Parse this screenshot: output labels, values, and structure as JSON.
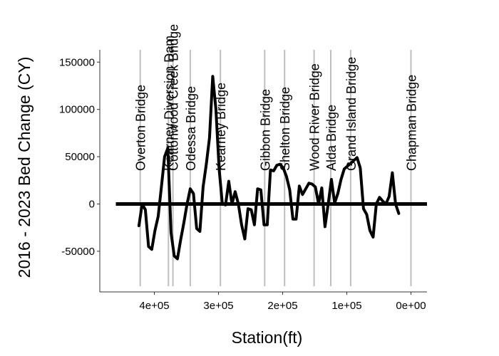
{
  "chart_data": {
    "type": "line",
    "xlabel": "Station(ft)",
    "ylabel": "2016 - 2023 Bed Change (CY)",
    "x_reversed": true,
    "xlim": [
      -25000,
      485000
    ],
    "ylim": [
      -93000,
      163000
    ],
    "x_ticks": [
      {
        "value": 400000,
        "label": "4e+05"
      },
      {
        "value": 300000,
        "label": "3e+05"
      },
      {
        "value": 200000,
        "label": "2e+05"
      },
      {
        "value": 100000,
        "label": "1e+05"
      },
      {
        "value": 0,
        "label": "0e+00"
      }
    ],
    "y_ticks": [
      {
        "value": 150000,
        "label": "150000"
      },
      {
        "value": 100000,
        "label": "100000"
      },
      {
        "value": 50000,
        "label": "50000"
      },
      {
        "value": 0,
        "label": "0"
      },
      {
        "value": -50000,
        "label": "-50000"
      }
    ],
    "grid": false,
    "zero_line": true,
    "colors": {
      "line": "#000000",
      "bridge_line": "#bebebe",
      "axis": "#333333"
    },
    "bridges": [
      {
        "label": "Overton Bridge",
        "station": 422000
      },
      {
        "label": "Kearney Diversion Dam",
        "station": 378000
      },
      {
        "label": "Cottonwood Creek Bridge",
        "station": 371000
      },
      {
        "label": "Odessa Bridge",
        "station": 344000
      },
      {
        "label": "Kearney Bridge",
        "station": 297000
      },
      {
        "label": "Gibbon Bridge",
        "station": 228000
      },
      {
        "label": "Shelton Bridge",
        "station": 197000
      },
      {
        "label": "Wood River Bridge",
        "station": 151000
      },
      {
        "label": "Alda Bridge",
        "station": 125000
      },
      {
        "label": "Grand Island Bridge",
        "station": 94000
      },
      {
        "label": "Chapman Bridge",
        "station": 0
      }
    ],
    "series": [
      {
        "points": [
          [
            424000,
            -23000
          ],
          [
            419000,
            0
          ],
          [
            414000,
            -6000
          ],
          [
            409000,
            -45000
          ],
          [
            404000,
            -48000
          ],
          [
            399000,
            -28000
          ],
          [
            394000,
            -13000
          ],
          [
            389000,
            18000
          ],
          [
            384000,
            50000
          ],
          [
            379000,
            59000
          ],
          [
            374000,
            -30000
          ],
          [
            369000,
            -55000
          ],
          [
            364000,
            -58000
          ],
          [
            359000,
            -38000
          ],
          [
            354000,
            -20000
          ],
          [
            349000,
            0
          ],
          [
            344000,
            16000
          ],
          [
            339000,
            11000
          ],
          [
            334000,
            -26000
          ],
          [
            329000,
            -29000
          ],
          [
            324000,
            18000
          ],
          [
            319000,
            42000
          ],
          [
            314000,
            70000
          ],
          [
            309000,
            135000
          ],
          [
            304000,
            100000
          ],
          [
            299000,
            37000
          ],
          [
            294000,
            0
          ],
          [
            289000,
            -1000
          ],
          [
            284000,
            24000
          ],
          [
            279000,
            0
          ],
          [
            274000,
            13000
          ],
          [
            269000,
            0
          ],
          [
            264000,
            -22000
          ],
          [
            259000,
            -37000
          ],
          [
            254000,
            -5000
          ],
          [
            249000,
            -6000
          ],
          [
            244000,
            -22000
          ],
          [
            239000,
            16000
          ],
          [
            234000,
            15000
          ],
          [
            229000,
            -22000
          ],
          [
            224000,
            -22000
          ],
          [
            219000,
            36000
          ],
          [
            214000,
            35000
          ],
          [
            209000,
            41000
          ],
          [
            204000,
            42000
          ],
          [
            199000,
            38000
          ],
          [
            194000,
            29000
          ],
          [
            189000,
            15000
          ],
          [
            184000,
            -16000
          ],
          [
            179000,
            -16000
          ],
          [
            174000,
            19000
          ],
          [
            169000,
            10000
          ],
          [
            164000,
            16000
          ],
          [
            159000,
            22000
          ],
          [
            154000,
            21000
          ],
          [
            149000,
            18000
          ],
          [
            144000,
            0
          ],
          [
            139000,
            17000
          ],
          [
            134000,
            -24000
          ],
          [
            129000,
            0
          ],
          [
            124000,
            26000
          ],
          [
            119000,
            1000
          ],
          [
            114000,
            11000
          ],
          [
            109000,
            26000
          ],
          [
            104000,
            37000
          ],
          [
            99000,
            40000
          ],
          [
            94000,
            43000
          ],
          [
            89000,
            46000
          ],
          [
            84000,
            49000
          ],
          [
            79000,
            38000
          ],
          [
            74000,
            -5000
          ],
          [
            69000,
            -11000
          ],
          [
            64000,
            -28000
          ],
          [
            59000,
            -35000
          ],
          [
            54000,
            0
          ],
          [
            49000,
            7000
          ],
          [
            44000,
            3000
          ],
          [
            39000,
            0
          ],
          [
            34000,
            8000
          ],
          [
            29000,
            33000
          ],
          [
            24000,
            0
          ],
          [
            19000,
            -10000
          ]
        ]
      }
    ]
  }
}
